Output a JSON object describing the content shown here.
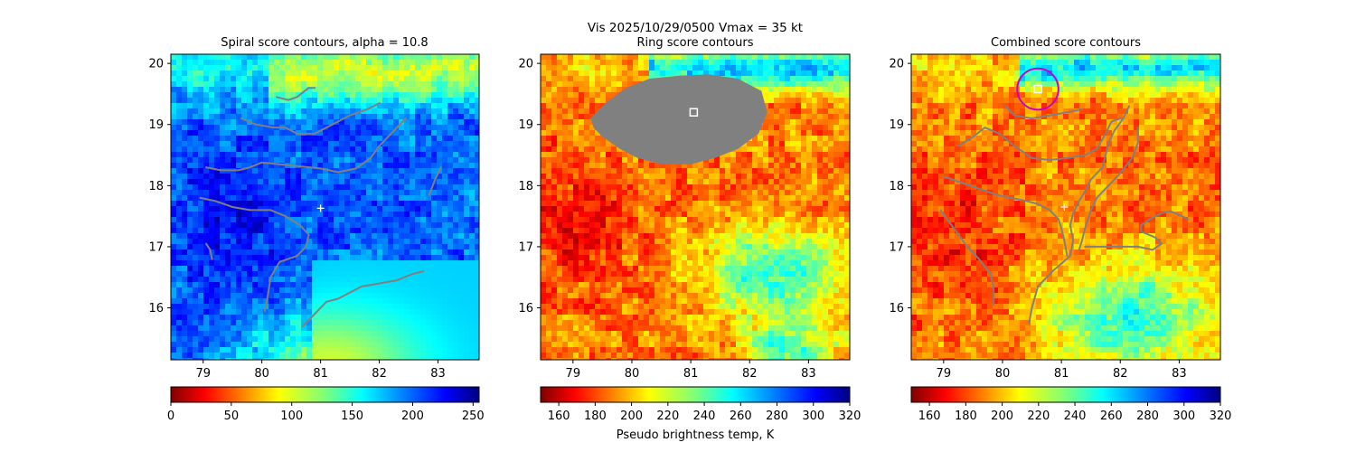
{
  "figure": {
    "suptitle": "Vis  2025/10/29/0500    Vmax = 35 kt"
  },
  "chart_data": [
    {
      "type": "heatmap",
      "title": "Spiral score contours, alpha = 10.8",
      "x_ticks": [
        79,
        80,
        81,
        82,
        83
      ],
      "y_ticks": [
        16,
        17,
        18,
        19,
        20
      ],
      "xlim": [
        78.45,
        83.7
      ],
      "ylim": [
        15.15,
        20.15
      ],
      "colormap": "jet_r",
      "colorbar": {
        "ticks": [
          0,
          50,
          100,
          150,
          200,
          250
        ],
        "range": [
          0,
          255
        ],
        "label": ""
      },
      "markers": [
        {
          "kind": "plus",
          "x": 81.0,
          "y": 17.63,
          "color": "#ffffff"
        }
      ],
      "contour_color": "#808080",
      "contours": [
        [
          [
            80.25,
            19.45
          ],
          [
            80.45,
            19.4
          ],
          [
            80.6,
            19.45
          ],
          [
            80.8,
            19.6
          ],
          [
            80.9,
            19.6
          ]
        ],
        [
          [
            79.65,
            19.1
          ],
          [
            79.9,
            19.0
          ],
          [
            80.2,
            18.95
          ],
          [
            80.4,
            18.95
          ],
          [
            80.6,
            18.85
          ],
          [
            80.9,
            18.85
          ],
          [
            81.1,
            18.95
          ],
          [
            81.3,
            19.05
          ],
          [
            81.5,
            19.15
          ],
          [
            81.8,
            19.25
          ],
          [
            82.0,
            19.35
          ]
        ],
        [
          [
            79.05,
            18.3
          ],
          [
            79.3,
            18.25
          ],
          [
            79.6,
            18.25
          ],
          [
            79.8,
            18.3
          ],
          [
            80.0,
            18.38
          ],
          [
            80.3,
            18.35
          ],
          [
            80.6,
            18.32
          ],
          [
            81.0,
            18.28
          ],
          [
            81.3,
            18.22
          ],
          [
            81.6,
            18.28
          ],
          [
            81.85,
            18.45
          ],
          [
            82.0,
            18.65
          ],
          [
            82.15,
            18.8
          ],
          [
            82.3,
            18.95
          ],
          [
            82.45,
            19.1
          ]
        ],
        [
          [
            82.85,
            17.85
          ],
          [
            82.95,
            18.1
          ],
          [
            83.05,
            18.3
          ]
        ],
        [
          [
            78.95,
            17.8
          ],
          [
            79.2,
            17.75
          ],
          [
            79.5,
            17.65
          ],
          [
            79.8,
            17.6
          ],
          [
            80.15,
            17.6
          ],
          [
            80.4,
            17.5
          ],
          [
            80.65,
            17.35
          ],
          [
            80.8,
            17.2
          ],
          [
            80.75,
            17.0
          ],
          [
            80.6,
            16.85
          ],
          [
            80.3,
            16.75
          ],
          [
            80.15,
            16.5
          ],
          [
            80.1,
            16.2
          ],
          [
            80.05,
            15.95
          ]
        ],
        [
          [
            79.05,
            17.05
          ],
          [
            79.12,
            16.95
          ],
          [
            79.15,
            16.8
          ]
        ],
        [
          [
            80.7,
            15.7
          ],
          [
            80.9,
            15.9
          ],
          [
            81.1,
            16.1
          ],
          [
            81.3,
            16.15
          ],
          [
            81.5,
            16.25
          ],
          [
            81.7,
            16.35
          ],
          [
            82.0,
            16.4
          ],
          [
            82.3,
            16.45
          ],
          [
            82.55,
            16.55
          ],
          [
            82.75,
            16.6
          ]
        ]
      ]
    },
    {
      "type": "heatmap",
      "title": "Ring score contours",
      "x_ticks": [
        79,
        80,
        81,
        82,
        83
      ],
      "y_ticks": [
        16,
        17,
        18,
        19,
        20
      ],
      "xlim": [
        78.45,
        83.7
      ],
      "ylim": [
        15.15,
        20.15
      ],
      "colormap": "jet_r",
      "colorbar": {
        "ticks": [
          160,
          180,
          200,
          220,
          240,
          260,
          280,
          300,
          320
        ],
        "range": [
          150,
          320
        ],
        "label": "Pseudo brightness temp, K"
      },
      "markers": [
        {
          "kind": "square",
          "x": 81.05,
          "y": 19.2,
          "color": "#ffffff"
        }
      ],
      "filled_contour_color": "#808080",
      "filled_contour": [
        [
          79.3,
          19.1
        ],
        [
          79.55,
          19.35
        ],
        [
          79.9,
          19.6
        ],
        [
          80.3,
          19.75
        ],
        [
          80.8,
          19.8
        ],
        [
          81.3,
          19.82
        ],
        [
          81.8,
          19.75
        ],
        [
          82.2,
          19.55
        ],
        [
          82.3,
          19.2
        ],
        [
          82.15,
          18.85
        ],
        [
          81.8,
          18.6
        ],
        [
          81.4,
          18.45
        ],
        [
          81.0,
          18.35
        ],
        [
          80.5,
          18.35
        ],
        [
          80.1,
          18.45
        ],
        [
          79.8,
          18.6
        ],
        [
          79.5,
          18.8
        ],
        [
          79.35,
          18.95
        ]
      ]
    },
    {
      "type": "heatmap",
      "title": "Combined score contours",
      "x_ticks": [
        79,
        80,
        81,
        82,
        83
      ],
      "y_ticks": [
        16,
        17,
        18,
        19,
        20
      ],
      "xlim": [
        78.45,
        83.7
      ],
      "ylim": [
        15.15,
        20.15
      ],
      "colormap": "jet_r",
      "colorbar": {
        "ticks": [
          160,
          180,
          200,
          220,
          240,
          260,
          280,
          300,
          320
        ],
        "range": [
          150,
          320
        ],
        "label": ""
      },
      "markers": [
        {
          "kind": "plus",
          "x": 81.05,
          "y": 17.65,
          "color": "#ffffff"
        },
        {
          "kind": "square",
          "x": 80.6,
          "y": 19.58,
          "color": "#ffffff"
        },
        {
          "kind": "circle",
          "x": 80.6,
          "y": 19.58,
          "r": 0.35,
          "color": "#cc00cc"
        }
      ],
      "contour_color": "#808080",
      "contours": [
        [
          [
            80.05,
            19.3
          ],
          [
            80.2,
            19.15
          ],
          [
            80.5,
            19.1
          ],
          [
            80.8,
            19.15
          ],
          [
            81.1,
            19.2
          ],
          [
            81.35,
            19.25
          ]
        ],
        [
          [
            79.25,
            18.65
          ],
          [
            79.5,
            18.8
          ],
          [
            79.7,
            18.95
          ],
          [
            79.95,
            18.85
          ],
          [
            80.2,
            18.65
          ],
          [
            80.5,
            18.45
          ],
          [
            80.8,
            18.42
          ],
          [
            81.1,
            18.45
          ],
          [
            81.4,
            18.5
          ],
          [
            81.6,
            18.6
          ],
          [
            81.75,
            18.85
          ],
          [
            81.85,
            19.05
          ],
          [
            82.0,
            19.1
          ]
        ],
        [
          [
            82.15,
            19.3
          ],
          [
            82.05,
            19.1
          ],
          [
            81.9,
            18.9
          ],
          [
            81.8,
            18.7
          ],
          [
            81.75,
            18.5
          ],
          [
            81.7,
            18.3
          ],
          [
            81.5,
            18.1
          ],
          [
            81.4,
            17.9
          ],
          [
            81.3,
            17.75
          ],
          [
            81.2,
            17.55
          ],
          [
            81.15,
            17.35
          ],
          [
            81.2,
            17.1
          ],
          [
            81.15,
            16.85
          ],
          [
            80.85,
            16.6
          ],
          [
            80.6,
            16.35
          ],
          [
            80.5,
            16.0
          ],
          [
            80.45,
            15.75
          ]
        ],
        [
          [
            82.3,
            18.95
          ],
          [
            82.3,
            18.7
          ],
          [
            82.2,
            18.45
          ],
          [
            81.95,
            18.15
          ],
          [
            81.75,
            17.95
          ],
          [
            81.6,
            17.8
          ],
          [
            81.5,
            17.6
          ],
          [
            81.4,
            17.3
          ],
          [
            81.35,
            17.1
          ],
          [
            81.3,
            16.95
          ]
        ],
        [
          [
            79.0,
            18.15
          ],
          [
            79.3,
            18.05
          ],
          [
            79.6,
            17.95
          ],
          [
            79.9,
            17.85
          ],
          [
            80.15,
            17.8
          ],
          [
            80.4,
            17.75
          ],
          [
            80.6,
            17.7
          ],
          [
            80.8,
            17.6
          ],
          [
            80.95,
            17.45
          ],
          [
            81.0,
            17.3
          ],
          [
            81.05,
            17.1
          ],
          [
            81.1,
            16.85
          ]
        ],
        [
          [
            78.95,
            17.6
          ],
          [
            79.1,
            17.4
          ],
          [
            79.25,
            17.2
          ],
          [
            79.4,
            17.0
          ],
          [
            79.6,
            16.8
          ],
          [
            79.8,
            16.55
          ],
          [
            79.85,
            16.3
          ],
          [
            79.85,
            16.05
          ]
        ],
        [
          [
            81.4,
            17.0
          ],
          [
            81.6,
            17.0
          ],
          [
            81.9,
            17.0
          ],
          [
            82.3,
            17.0
          ],
          [
            82.55,
            16.95
          ],
          [
            82.7,
            17.05
          ],
          [
            82.6,
            17.15
          ],
          [
            82.35,
            17.25
          ],
          [
            82.35,
            17.35
          ],
          [
            82.5,
            17.45
          ],
          [
            82.7,
            17.55
          ],
          [
            82.85,
            17.58
          ],
          [
            83.05,
            17.5
          ],
          [
            83.15,
            17.45
          ]
        ]
      ]
    }
  ]
}
